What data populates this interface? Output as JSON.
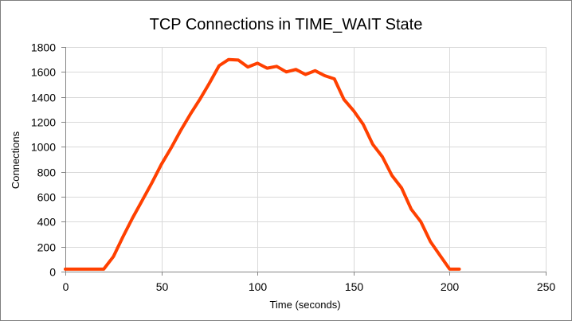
{
  "chart_data": {
    "type": "line",
    "title": "TCP Connections in TIME_WAIT State",
    "xlabel": "Time (seconds)",
    "ylabel": "Connections",
    "xlim": [
      0,
      250
    ],
    "ylim": [
      0,
      1800
    ],
    "xticks": [
      0,
      50,
      100,
      150,
      200,
      250
    ],
    "yticks": [
      0,
      200,
      400,
      600,
      800,
      1000,
      1200,
      1400,
      1600,
      1800
    ],
    "grid": true,
    "legend": "none",
    "series": [
      {
        "color": "#ff4000",
        "points": [
          [
            0,
            20
          ],
          [
            5,
            20
          ],
          [
            10,
            20
          ],
          [
            15,
            20
          ],
          [
            20,
            20
          ],
          [
            25,
            120
          ],
          [
            30,
            280
          ],
          [
            35,
            430
          ],
          [
            40,
            570
          ],
          [
            45,
            710
          ],
          [
            50,
            860
          ],
          [
            55,
            990
          ],
          [
            60,
            1130
          ],
          [
            65,
            1260
          ],
          [
            70,
            1380
          ],
          [
            75,
            1510
          ],
          [
            80,
            1650
          ],
          [
            85,
            1700
          ],
          [
            90,
            1695
          ],
          [
            95,
            1640
          ],
          [
            100,
            1670
          ],
          [
            105,
            1630
          ],
          [
            110,
            1645
          ],
          [
            115,
            1600
          ],
          [
            120,
            1620
          ],
          [
            125,
            1580
          ],
          [
            130,
            1610
          ],
          [
            135,
            1570
          ],
          [
            140,
            1545
          ],
          [
            145,
            1380
          ],
          [
            150,
            1290
          ],
          [
            155,
            1180
          ],
          [
            160,
            1020
          ],
          [
            165,
            920
          ],
          [
            170,
            770
          ],
          [
            175,
            670
          ],
          [
            180,
            500
          ],
          [
            185,
            400
          ],
          [
            190,
            240
          ],
          [
            195,
            130
          ],
          [
            200,
            20
          ],
          [
            205,
            20
          ]
        ]
      }
    ]
  }
}
